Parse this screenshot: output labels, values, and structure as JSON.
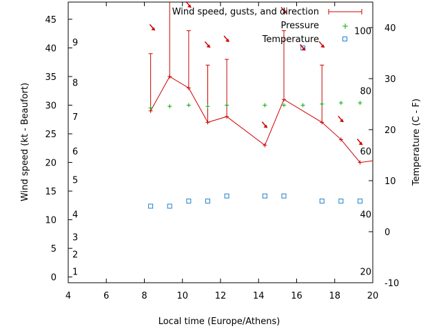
{
  "chart_data": {
    "type": "line",
    "xlabel": "Local time (Europe/Athens)",
    "ylabel": "Wind speed (kt - Beaufort)",
    "y2label": "Temperature (C - F)",
    "xlim": [
      4,
      20
    ],
    "ylim": [
      -1,
      48
    ],
    "y2lim": [
      -10,
      45
    ],
    "x_ticks": [
      4,
      6,
      8,
      10,
      12,
      14,
      16,
      18,
      20
    ],
    "y_ticks": [
      0,
      5,
      10,
      15,
      20,
      25,
      30,
      35,
      40,
      45
    ],
    "y2_ticks": [
      -10,
      0,
      10,
      20,
      30,
      40
    ],
    "beaufort_labels": [
      {
        "label": "1",
        "y": 1
      },
      {
        "label": "2",
        "y": 4
      },
      {
        "label": "3",
        "y": 7
      },
      {
        "label": "4",
        "y": 11
      },
      {
        "label": "5",
        "y": 17
      },
      {
        "label": "6",
        "y": 22
      },
      {
        "label": "7",
        "y": 28
      },
      {
        "label": "8",
        "y": 34
      },
      {
        "label": "9",
        "y": 41
      }
    ],
    "fahrenheit_labels": [
      {
        "label": "20",
        "y": 1
      },
      {
        "label": "40",
        "y": 11
      },
      {
        "label": "60",
        "y": 22
      },
      {
        "label": "80",
        "y": 32.5
      },
      {
        "label": "100",
        "y": 43
      }
    ],
    "legend": {
      "position": "top-right",
      "entries": [
        "Wind speed, gusts, and direction",
        "Pressure",
        "Temperature"
      ]
    },
    "series": [
      {
        "name": "Wind speed, gusts, and direction",
        "color": "#cc0000",
        "x": [
          8.33,
          9.33,
          10.33,
          11.33,
          12.33,
          14.33,
          15.33,
          17.33,
          18.33,
          19.33,
          20.0
        ],
        "values": [
          29,
          35,
          33,
          27,
          28,
          23,
          31,
          27,
          24,
          20,
          20.3
        ],
        "gusts": [
          39,
          48,
          43,
          37,
          38,
          null,
          43,
          37,
          null,
          null,
          null
        ]
      },
      {
        "name": "Pressure",
        "color": "#00aa00",
        "x": [
          8.33,
          9.33,
          10.33,
          11.33,
          12.33,
          14.33,
          15.33,
          16.33,
          17.33,
          18.33,
          19.33
        ],
        "values": [
          29.5,
          29.8,
          30.0,
          29.8,
          30.0,
          30.0,
          30.0,
          30.0,
          30.2,
          30.4,
          30.4
        ]
      },
      {
        "name": "Temperature",
        "color": "#1e7fc8",
        "axis": "y2",
        "x": [
          8.33,
          9.33,
          10.33,
          11.33,
          12.33,
          14.33,
          15.33,
          16.33,
          17.33,
          18.33,
          19.33
        ],
        "values": [
          5,
          5,
          6,
          6,
          7,
          7,
          7,
          36,
          6,
          6,
          6
        ]
      }
    ],
    "direction_arrows": [
      {
        "x": 8.43,
        "y": 43.5
      },
      {
        "x": 10.33,
        "y": 47.5
      },
      {
        "x": 11.33,
        "y": 40.5
      },
      {
        "x": 12.33,
        "y": 41.5
      },
      {
        "x": 14.33,
        "y": 26.5
      },
      {
        "x": 15.33,
        "y": 46.5
      },
      {
        "x": 16.33,
        "y": 40
      },
      {
        "x": 17.33,
        "y": 40.5
      },
      {
        "x": 18.33,
        "y": 27.5
      },
      {
        "x": 19.33,
        "y": 23.5
      }
    ]
  }
}
